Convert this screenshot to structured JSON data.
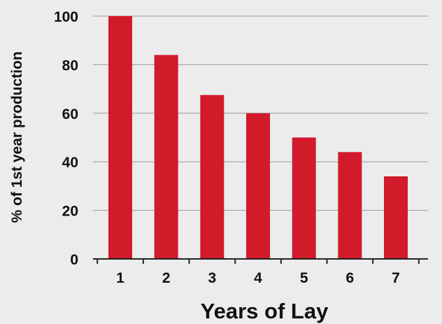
{
  "chart_data": {
    "type": "bar",
    "categories": [
      "1",
      "2",
      "3",
      "4",
      "5",
      "6",
      "7"
    ],
    "values": [
      100,
      84,
      67.5,
      60,
      50,
      44,
      34
    ],
    "title": "",
    "xlabel": "Years of Lay",
    "ylabel": "% of 1st year production",
    "ylim": [
      0,
      100
    ],
    "yticks": [
      "0",
      "20",
      "40",
      "60",
      "80",
      "100"
    ],
    "grid": true,
    "colors": {
      "bar": "#d11a2a",
      "grid": "#9a9a9a",
      "axis": "#222222",
      "background": "#ececec"
    }
  }
}
